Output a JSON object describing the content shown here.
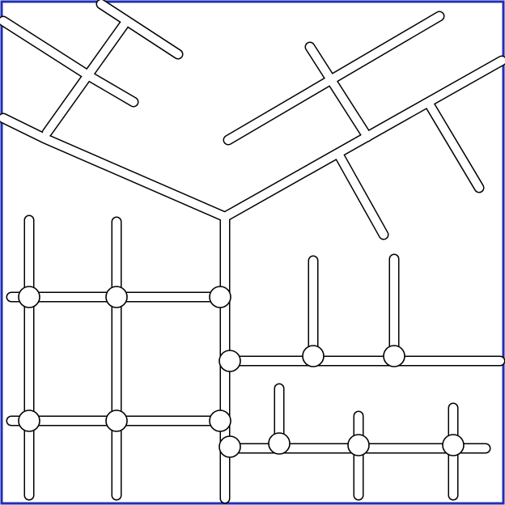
{
  "figure": {
    "description_visible_text": "",
    "colors": {
      "background": "#ffffff",
      "frame": "#1f2fb3",
      "outline": "#000000",
      "fill": "#ffffff"
    }
  }
}
